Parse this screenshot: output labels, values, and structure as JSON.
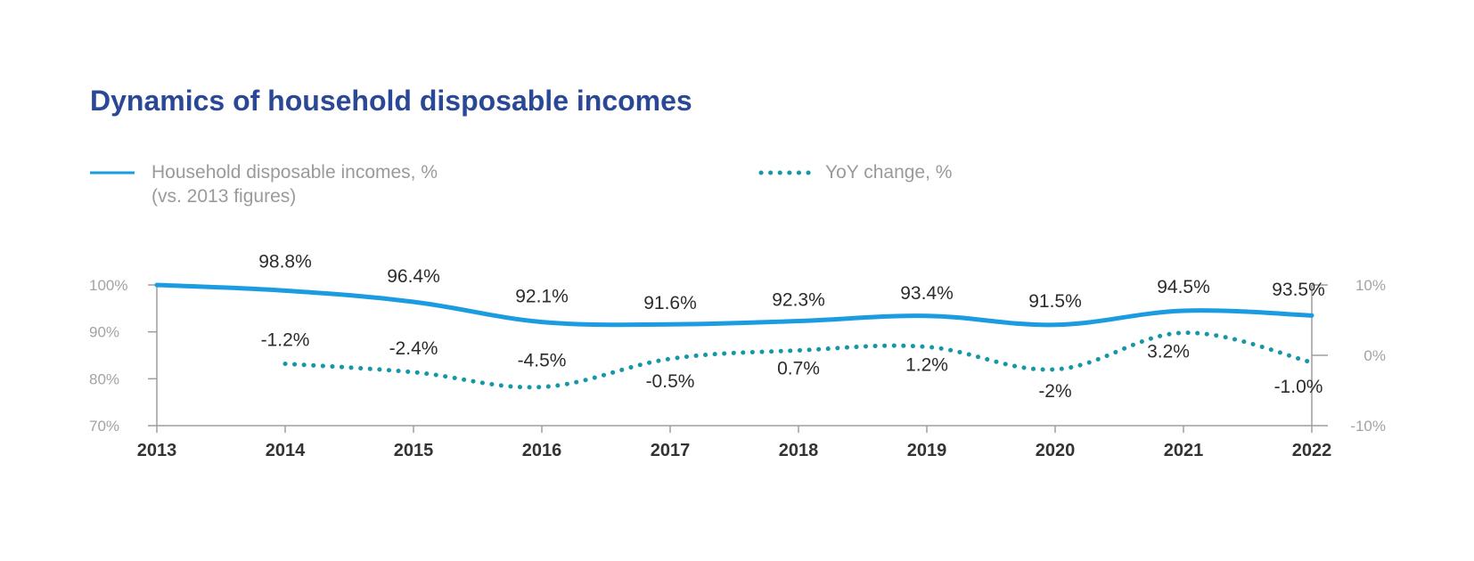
{
  "title": "Dynamics of household disposable incomes",
  "legend": {
    "income_line1": "Household disposable incomes, %",
    "income_line2": "(vs. 2013 figures)",
    "yoy": "YoY change, %"
  },
  "colors": {
    "title": "#2a4896",
    "income": "#1b9be0",
    "yoy": "#1597a5",
    "axis": "#9e9e9e"
  },
  "chart_data": {
    "type": "line",
    "categories": [
      "2013",
      "2014",
      "2015",
      "2016",
      "2017",
      "2018",
      "2019",
      "2020",
      "2021",
      "2022"
    ],
    "series": [
      {
        "name": "Household disposable incomes, % (vs. 2013 figures)",
        "axis": "left",
        "style": "solid",
        "values": [
          100,
          98.8,
          96.4,
          92.1,
          91.6,
          92.3,
          93.4,
          91.5,
          94.5,
          93.5
        ],
        "labels": [
          "",
          "98.8%",
          "96.4%",
          "92.1%",
          "91.6%",
          "92.3%",
          "93.4%",
          "91.5%",
          "94.5%",
          "93.5%"
        ]
      },
      {
        "name": "YoY change, %",
        "axis": "right",
        "style": "dotted",
        "values": [
          null,
          -1.2,
          -2.4,
          -4.5,
          -0.5,
          0.7,
          1.2,
          -2,
          3.2,
          -1.0
        ],
        "labels": [
          "",
          "-1.2%",
          "-2.4%",
          "-4.5%",
          "-0.5%",
          "0.7%",
          "1.2%",
          "-2%",
          "3.2%",
          "-1.0%"
        ]
      }
    ],
    "left_axis": {
      "ylim": [
        70,
        100
      ],
      "ticks": [
        "100%",
        "90%",
        "80%",
        "70%"
      ]
    },
    "right_axis": {
      "ylim": [
        -10,
        10
      ],
      "ticks": [
        "10%",
        "0%",
        "-10%"
      ]
    },
    "grid": false,
    "legend_position": "top"
  }
}
